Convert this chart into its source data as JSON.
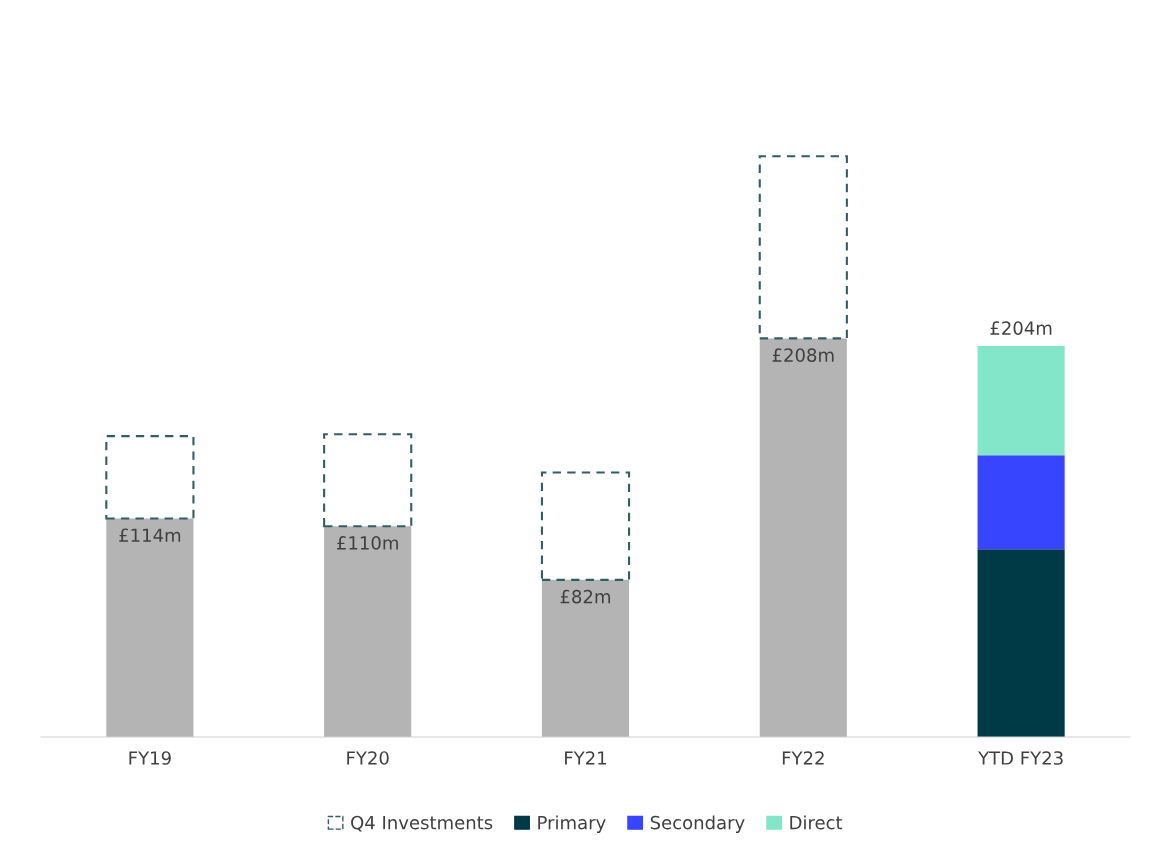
{
  "chart_data": {
    "type": "bar",
    "stacked": true,
    "categories": [
      "FY19",
      "FY20",
      "FY21",
      "FY22",
      "YTD FY23"
    ],
    "series": [
      {
        "color": "#b4b4b4",
        "values": [
          114,
          110,
          82,
          208,
          null
        ],
        "value_labels": [
          "£114m",
          "£110m",
          "£82m",
          "£208m",
          null
        ]
      },
      {
        "name": "Primary",
        "color": "#003a47",
        "values": [
          null,
          null,
          null,
          null,
          98
        ]
      },
      {
        "name": "Secondary",
        "color": "#3845ff",
        "values": [
          null,
          null,
          null,
          null,
          49
        ]
      },
      {
        "name": "Direct",
        "color": "#84e6c8",
        "values": [
          null,
          null,
          null,
          null,
          57
        ]
      },
      {
        "name": "Q4 Investments",
        "color": "#2f5f64",
        "line_style": "dashed",
        "values": [
          43,
          48,
          56,
          95,
          null
        ]
      }
    ],
    "totals": [
      null,
      null,
      null,
      null,
      "£204m"
    ],
    "tick_labels": "x",
    "legend": "bottom",
    "grid": false
  }
}
